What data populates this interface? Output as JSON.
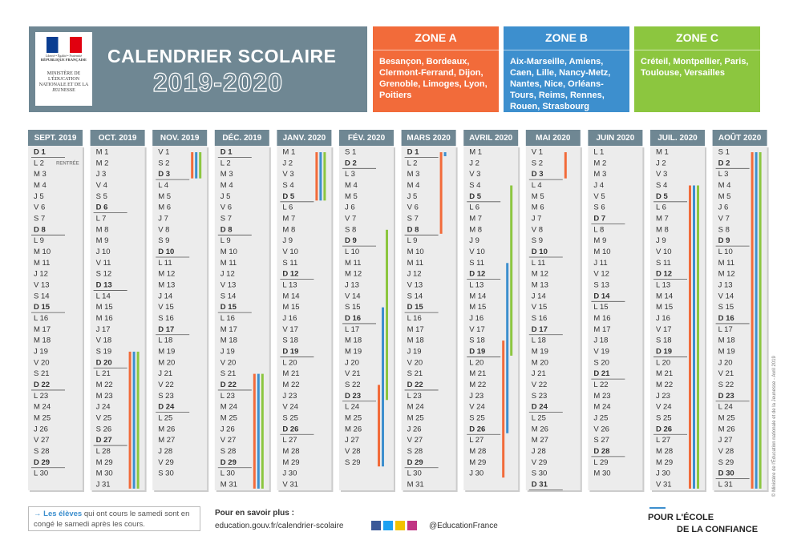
{
  "header": {
    "logo": {
      "motto": "Liberté • Égalité • Fraternité",
      "republic": "RÉPUBLIQUE FRANÇAISE",
      "ministry": "MINISTÈRE DE L'ÉDUCATION NATIONALE ET DE LA JEUNESSE"
    },
    "title": "CALENDRIER SCOLAIRE",
    "year": "2019-2020"
  },
  "zones": [
    {
      "name": "ZONE A",
      "color": "#f26b3a",
      "cities": "Besançon, Bordeaux, Clermont-Ferrand, Dijon, Grenoble, Limoges, Lyon, Poitiers",
      "vacations": [
        [
          1,
          19,
          31
        ],
        [
          2,
          1,
          3
        ],
        [
          3,
          21,
          31
        ],
        [
          4,
          1,
          5
        ],
        [
          5,
          22,
          29
        ],
        [
          6,
          1,
          8
        ],
        [
          7,
          18,
          30
        ],
        [
          8,
          1,
          3
        ],
        [
          10,
          4,
          31
        ],
        [
          11,
          1,
          31
        ]
      ]
    },
    {
      "name": "ZONE B",
      "color": "#3d8fce",
      "cities": "Aix-Marseille, Amiens, Caen, Lille, Nancy-Metz, Nantes, Nice, Orléans-Tours, Reims, Rennes, Rouen, Strasbourg",
      "vacations": [
        [
          1,
          19,
          31
        ],
        [
          2,
          1,
          3
        ],
        [
          3,
          21,
          31
        ],
        [
          4,
          1,
          5
        ],
        [
          5,
          15,
          29
        ],
        [
          6,
          1,
          1
        ],
        [
          7,
          11,
          26
        ],
        [
          10,
          4,
          31
        ],
        [
          11,
          1,
          31
        ]
      ]
    },
    {
      "name": "ZONE C",
      "color": "#8cc63f",
      "cities": "Créteil, Montpellier, Paris, Toulouse, Versailles",
      "vacations": [
        [
          1,
          19,
          31
        ],
        [
          2,
          1,
          3
        ],
        [
          3,
          21,
          31
        ],
        [
          4,
          1,
          5
        ],
        [
          5,
          8,
          23
        ],
        [
          7,
          4,
          19
        ],
        [
          10,
          4,
          31
        ],
        [
          11,
          1,
          31
        ]
      ]
    }
  ],
  "months": [
    {
      "name": "SEPT. 2019",
      "note": "RENTRÉE",
      "days": [
        "D 1",
        "L 2",
        "M 3",
        "M 4",
        "J 5",
        "V 6",
        "S 7",
        "D 8",
        "L 9",
        "M 10",
        "M 11",
        "J 12",
        "V 13",
        "S 14",
        "D 15",
        "L 16",
        "M 17",
        "M 18",
        "J 19",
        "V 20",
        "S 21",
        "D 22",
        "L 23",
        "M 24",
        "M 25",
        "J 26",
        "V 27",
        "S 28",
        "D 29",
        "L 30"
      ]
    },
    {
      "name": "OCT. 2019",
      "days": [
        "M 1",
        "M 2",
        "J 3",
        "V 4",
        "S 5",
        "D 6",
        "L 7",
        "M 8",
        "M 9",
        "J 10",
        "V 11",
        "S 12",
        "D 13",
        "L 14",
        "M 15",
        "M 16",
        "J 17",
        "V 18",
        "S 19",
        "D 20",
        "L 21",
        "M 22",
        "M 23",
        "J 24",
        "V 25",
        "S 26",
        "D 27",
        "L 28",
        "M 29",
        "M 30",
        "J 31"
      ]
    },
    {
      "name": "NOV. 2019",
      "days": [
        "V 1",
        "S 2",
        "D 3",
        "L 4",
        "M 5",
        "M 6",
        "J 7",
        "V 8",
        "S 9",
        "D 10",
        "L 11",
        "M 12",
        "M 13",
        "J 14",
        "V 15",
        "S 16",
        "D 17",
        "L 18",
        "M 19",
        "M 20",
        "J 21",
        "V 22",
        "S 23",
        "D 24",
        "L 25",
        "M 26",
        "M 27",
        "J 28",
        "V 29",
        "S 30"
      ]
    },
    {
      "name": "DÉC. 2019",
      "days": [
        "D 1",
        "L 2",
        "M 3",
        "M 4",
        "J 5",
        "V 6",
        "S 7",
        "D 8",
        "L 9",
        "M 10",
        "M 11",
        "J 12",
        "V 13",
        "S 14",
        "D 15",
        "L 16",
        "M 17",
        "M 18",
        "J 19",
        "V 20",
        "S 21",
        "D 22",
        "L 23",
        "M 24",
        "M 25",
        "J 26",
        "V 27",
        "S 28",
        "D 29",
        "L 30",
        "M 31"
      ]
    },
    {
      "name": "JANV. 2020",
      "days": [
        "M 1",
        "J 2",
        "V 3",
        "S 4",
        "D 5",
        "L 6",
        "M 7",
        "M 8",
        "J 9",
        "V 10",
        "S 11",
        "D 12",
        "L 13",
        "M 14",
        "M 15",
        "J 16",
        "V 17",
        "S 18",
        "D 19",
        "L 20",
        "M 21",
        "M 22",
        "J 23",
        "V 24",
        "S 25",
        "D 26",
        "L 27",
        "M 28",
        "M 29",
        "J 30",
        "V 31"
      ]
    },
    {
      "name": "FÉV. 2020",
      "days": [
        "S 1",
        "D 2",
        "L 3",
        "M 4",
        "M 5",
        "J 6",
        "V 7",
        "S 8",
        "D 9",
        "L 10",
        "M 11",
        "M 12",
        "J 13",
        "V 14",
        "S 15",
        "D 16",
        "L 17",
        "M 18",
        "M 19",
        "J 20",
        "V 21",
        "S 22",
        "D 23",
        "L 24",
        "M 25",
        "M 26",
        "J 27",
        "V 28",
        "S 29"
      ]
    },
    {
      "name": "MARS 2020",
      "days": [
        "D 1",
        "L 2",
        "M 3",
        "M 4",
        "J 5",
        "V 6",
        "S 7",
        "D 8",
        "L 9",
        "M 10",
        "M 11",
        "J 12",
        "V 13",
        "S 14",
        "D 15",
        "L 16",
        "M 17",
        "M 18",
        "J 19",
        "V 20",
        "S 21",
        "D 22",
        "L 23",
        "M 24",
        "M 25",
        "J 26",
        "V 27",
        "S 28",
        "D 29",
        "L 30",
        "M 31"
      ]
    },
    {
      "name": "AVRIL 2020",
      "days": [
        "M 1",
        "J 2",
        "V 3",
        "S 4",
        "D 5",
        "L 6",
        "M 7",
        "M 8",
        "J 9",
        "V 10",
        "S 11",
        "D 12",
        "L 13",
        "M 14",
        "M 15",
        "J 16",
        "V 17",
        "S 18",
        "D 19",
        "L 20",
        "M 21",
        "M 22",
        "J 23",
        "V 24",
        "S 25",
        "D 26",
        "L 27",
        "M 28",
        "M 29",
        "J 30"
      ]
    },
    {
      "name": "MAI 2020",
      "days": [
        "V 1",
        "S 2",
        "D 3",
        "L 4",
        "M 5",
        "M 6",
        "J 7",
        "V 8",
        "S 9",
        "D 10",
        "L 11",
        "M 12",
        "M 13",
        "J 14",
        "V 15",
        "S 16",
        "D 17",
        "L 18",
        "M 19",
        "M 20",
        "J 21",
        "V 22",
        "S 23",
        "D 24",
        "L 25",
        "M 26",
        "M 27",
        "J 28",
        "V 29",
        "S 30",
        "D 31"
      ]
    },
    {
      "name": "JUIN 2020",
      "days": [
        "L 1",
        "M 2",
        "M 3",
        "J 4",
        "V 5",
        "S 6",
        "D 7",
        "L 8",
        "M 9",
        "M 10",
        "J 11",
        "V 12",
        "S 13",
        "D 14",
        "L 15",
        "M 16",
        "M 17",
        "J 18",
        "V 19",
        "S 20",
        "D 21",
        "L 22",
        "M 23",
        "M 24",
        "J 25",
        "V 26",
        "S 27",
        "D 28",
        "L 29",
        "M 30"
      ]
    },
    {
      "name": "JUIL. 2020",
      "days": [
        "M 1",
        "J 2",
        "V 3",
        "S 4",
        "D 5",
        "L 6",
        "M 7",
        "M 8",
        "J 9",
        "V 10",
        "S 11",
        "D 12",
        "L 13",
        "M 14",
        "M 15",
        "J 16",
        "V 17",
        "S 18",
        "D 19",
        "L 20",
        "M 21",
        "M 22",
        "J 23",
        "V 24",
        "S 25",
        "D 26",
        "L 27",
        "M 28",
        "M 29",
        "J 30",
        "V 31"
      ]
    },
    {
      "name": "AOÛT 2020",
      "days": [
        "S 1",
        "D 2",
        "L 3",
        "M 4",
        "M 5",
        "J 6",
        "V 7",
        "S 8",
        "D 9",
        "L 10",
        "M 11",
        "M 12",
        "J 13",
        "V 14",
        "S 15",
        "D 16",
        "L 17",
        "M 18",
        "M 19",
        "J 20",
        "V 21",
        "S 22",
        "D 23",
        "L 24",
        "M 25",
        "M 26",
        "J 27",
        "V 28",
        "S 29",
        "D 30",
        "L 31"
      ]
    }
  ],
  "footer": {
    "note_bold": "Les élèves",
    "note": "qui ont cours le samedi sont en congé le samedi après les cours.",
    "more": "Pour en savoir plus :",
    "url": "education.gouv.fr/calendrier-scolaire",
    "social": "@EducationFrance",
    "slogan1": "POUR L'ÉCOLE",
    "slogan2": "DE LA CONFIANCE",
    "copyright": "© Ministère de l'Éducation nationale et de la Jeunesse - Avril 2019"
  }
}
